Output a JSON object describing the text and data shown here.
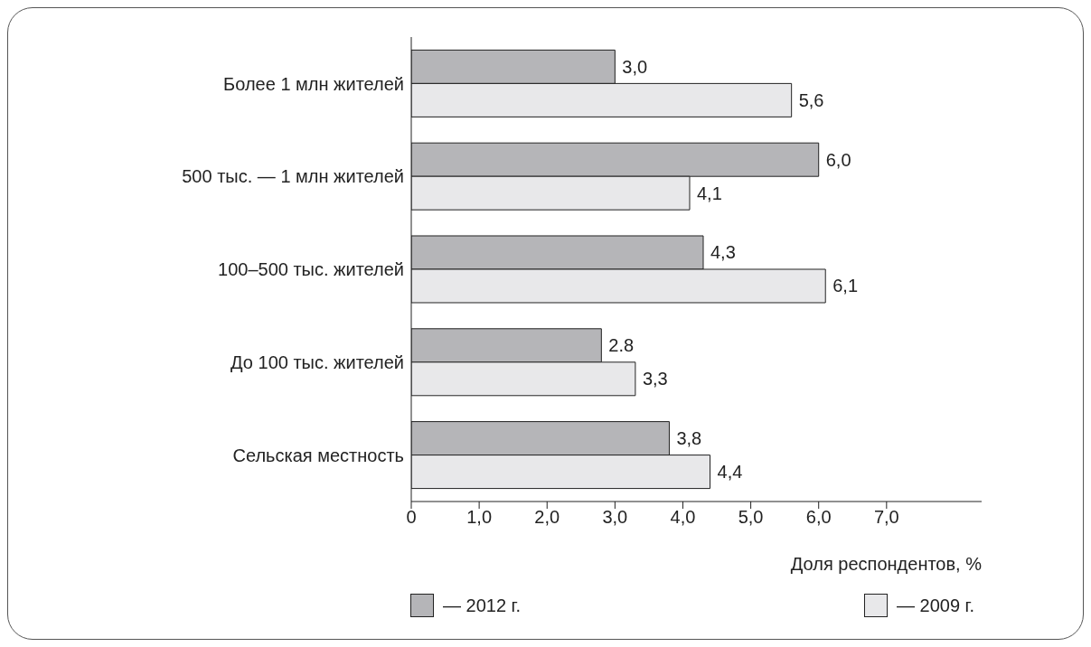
{
  "chart_data": {
    "type": "bar",
    "orientation": "horizontal",
    "xlabel": "Доля респондентов, %",
    "categories": [
      "Более 1 млн жителей",
      "500 тыс. — 1 млн жителей",
      "100–500 тыс. жителей",
      "До 100 тыс. жителей",
      "Сельская местность"
    ],
    "series": [
      {
        "name": "— 2012 г.",
        "color": "#b5b5b8",
        "values": [
          3.0,
          6.0,
          4.3,
          2.8,
          3.8
        ],
        "value_labels": [
          "3,0",
          "6,0",
          "4,3",
          "2.8",
          "3,8"
        ]
      },
      {
        "name": "— 2009 г.",
        "color": "#e8e8ea",
        "values": [
          5.6,
          4.1,
          6.1,
          3.3,
          4.4
        ],
        "value_labels": [
          "5,6",
          "4,1",
          "6,1",
          "3,3",
          "4,4"
        ]
      }
    ],
    "xlim": [
      0,
      8.4
    ],
    "xticks": [
      {
        "value": 0,
        "label": "0"
      },
      {
        "value": 1,
        "label": "1,0"
      },
      {
        "value": 2,
        "label": "2,0"
      },
      {
        "value": 3,
        "label": "3,0"
      },
      {
        "value": 4,
        "label": "4,0"
      },
      {
        "value": 5,
        "label": "5,0"
      },
      {
        "value": 6,
        "label": "6,0"
      },
      {
        "value": 7,
        "label": "7,0"
      }
    ],
    "grid": false,
    "legend": "bottom"
  }
}
